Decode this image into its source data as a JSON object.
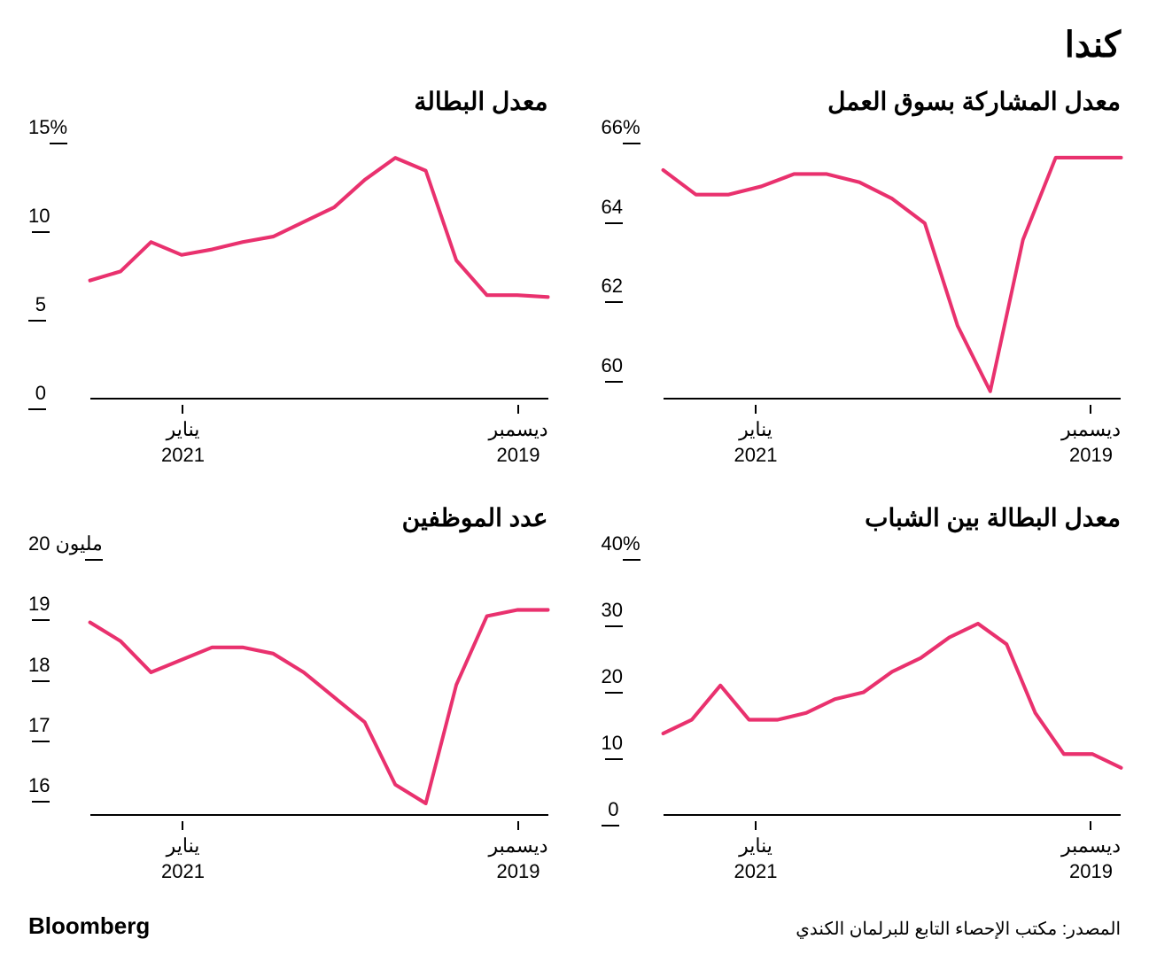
{
  "main_title": "كندا",
  "line_color": "#e9316e",
  "line_width": 4,
  "background_color": "#ffffff",
  "axis_color": "#000000",
  "text_color": "#000000",
  "title_fontsize": 28,
  "tick_fontsize": 22,
  "x_labels": [
    {
      "month": "ديسمبر",
      "year": "2019"
    },
    {
      "month": "يناير",
      "year": "2021"
    }
  ],
  "panels": [
    {
      "id": "participation",
      "title": "معدل المشاركة بسوق العمل",
      "type": "line",
      "ymin": 59.3,
      "ymax": 66,
      "yticks": [
        60,
        62,
        64,
        66
      ],
      "top_suffix": "%",
      "suffix_on_top": true,
      "values": [
        65.2,
        65.2,
        65.2,
        63.2,
        59.5,
        61.1,
        63.6,
        64.2,
        64.6,
        64.8,
        64.8,
        64.5,
        64.3,
        64.3,
        64.9
      ]
    },
    {
      "id": "unemployment",
      "title": "معدل البطالة",
      "type": "line",
      "ymin": 0,
      "ymax": 15,
      "yticks": [
        0,
        5,
        10,
        15
      ],
      "top_suffix": "%",
      "suffix_on_top": true,
      "values": [
        5.6,
        5.7,
        5.7,
        7.6,
        12.5,
        13.2,
        12.0,
        10.5,
        9.7,
        8.9,
        8.6,
        8.2,
        7.9,
        8.6,
        7.0,
        6.5
      ]
    },
    {
      "id": "youth",
      "title": "معدل البطالة بين الشباب",
      "type": "line",
      "ymin": 0,
      "ymax": 40,
      "yticks": [
        0,
        10,
        20,
        30,
        40
      ],
      "top_suffix": "%",
      "suffix_on_top": true,
      "values": [
        7,
        9,
        9,
        15,
        25,
        28,
        26,
        23,
        21,
        18,
        17,
        15,
        14,
        14,
        19,
        14,
        12
      ]
    },
    {
      "id": "employed",
      "title": "عدد الموظفين",
      "type": "line",
      "ymin": 15.6,
      "ymax": 20,
      "yticks": [
        16,
        17,
        18,
        19,
        20
      ],
      "top_suffix": " مليون",
      "suffix_on_top": true,
      "values": [
        18.9,
        18.9,
        18.8,
        17.7,
        15.8,
        16.1,
        17.1,
        17.5,
        17.9,
        18.2,
        18.3,
        18.3,
        18.1,
        17.9,
        18.4,
        18.7
      ]
    }
  ],
  "footer": {
    "source": "المصدر: مكتب الإحصاء التابع للبرلمان الكندي",
    "brand": "Bloomberg"
  }
}
